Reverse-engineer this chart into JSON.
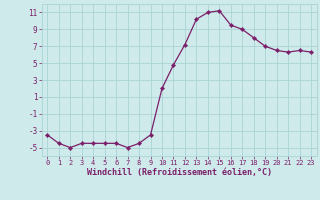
{
  "x": [
    0,
    1,
    2,
    3,
    4,
    5,
    6,
    7,
    8,
    9,
    10,
    11,
    12,
    13,
    14,
    15,
    16,
    17,
    18,
    19,
    20,
    21,
    22,
    23
  ],
  "y": [
    -3.5,
    -4.5,
    -5.0,
    -4.5,
    -4.5,
    -4.5,
    -4.5,
    -5.0,
    -4.5,
    -3.5,
    2.0,
    4.8,
    7.2,
    10.2,
    11.0,
    11.2,
    9.5,
    9.0,
    8.0,
    7.0,
    6.5,
    6.3,
    6.5,
    6.3
  ],
  "line_color": "#7B1F6A",
  "marker": "D",
  "marker_size": 2.2,
  "bg_color": "#ceeaea",
  "grid_color": "#aad4d4",
  "tick_color": "#7B1F6A",
  "label_color": "#7B1F6A",
  "xlabel": "Windchill (Refroidissement éolien,°C)",
  "ylim": [
    -6,
    12
  ],
  "xlim": [
    -0.5,
    23.5
  ],
  "yticks": [
    -5,
    -3,
    -1,
    1,
    3,
    5,
    7,
    9,
    11
  ],
  "xticks": [
    0,
    1,
    2,
    3,
    4,
    5,
    6,
    7,
    8,
    9,
    10,
    11,
    12,
    13,
    14,
    15,
    16,
    17,
    18,
    19,
    20,
    21,
    22,
    23
  ]
}
